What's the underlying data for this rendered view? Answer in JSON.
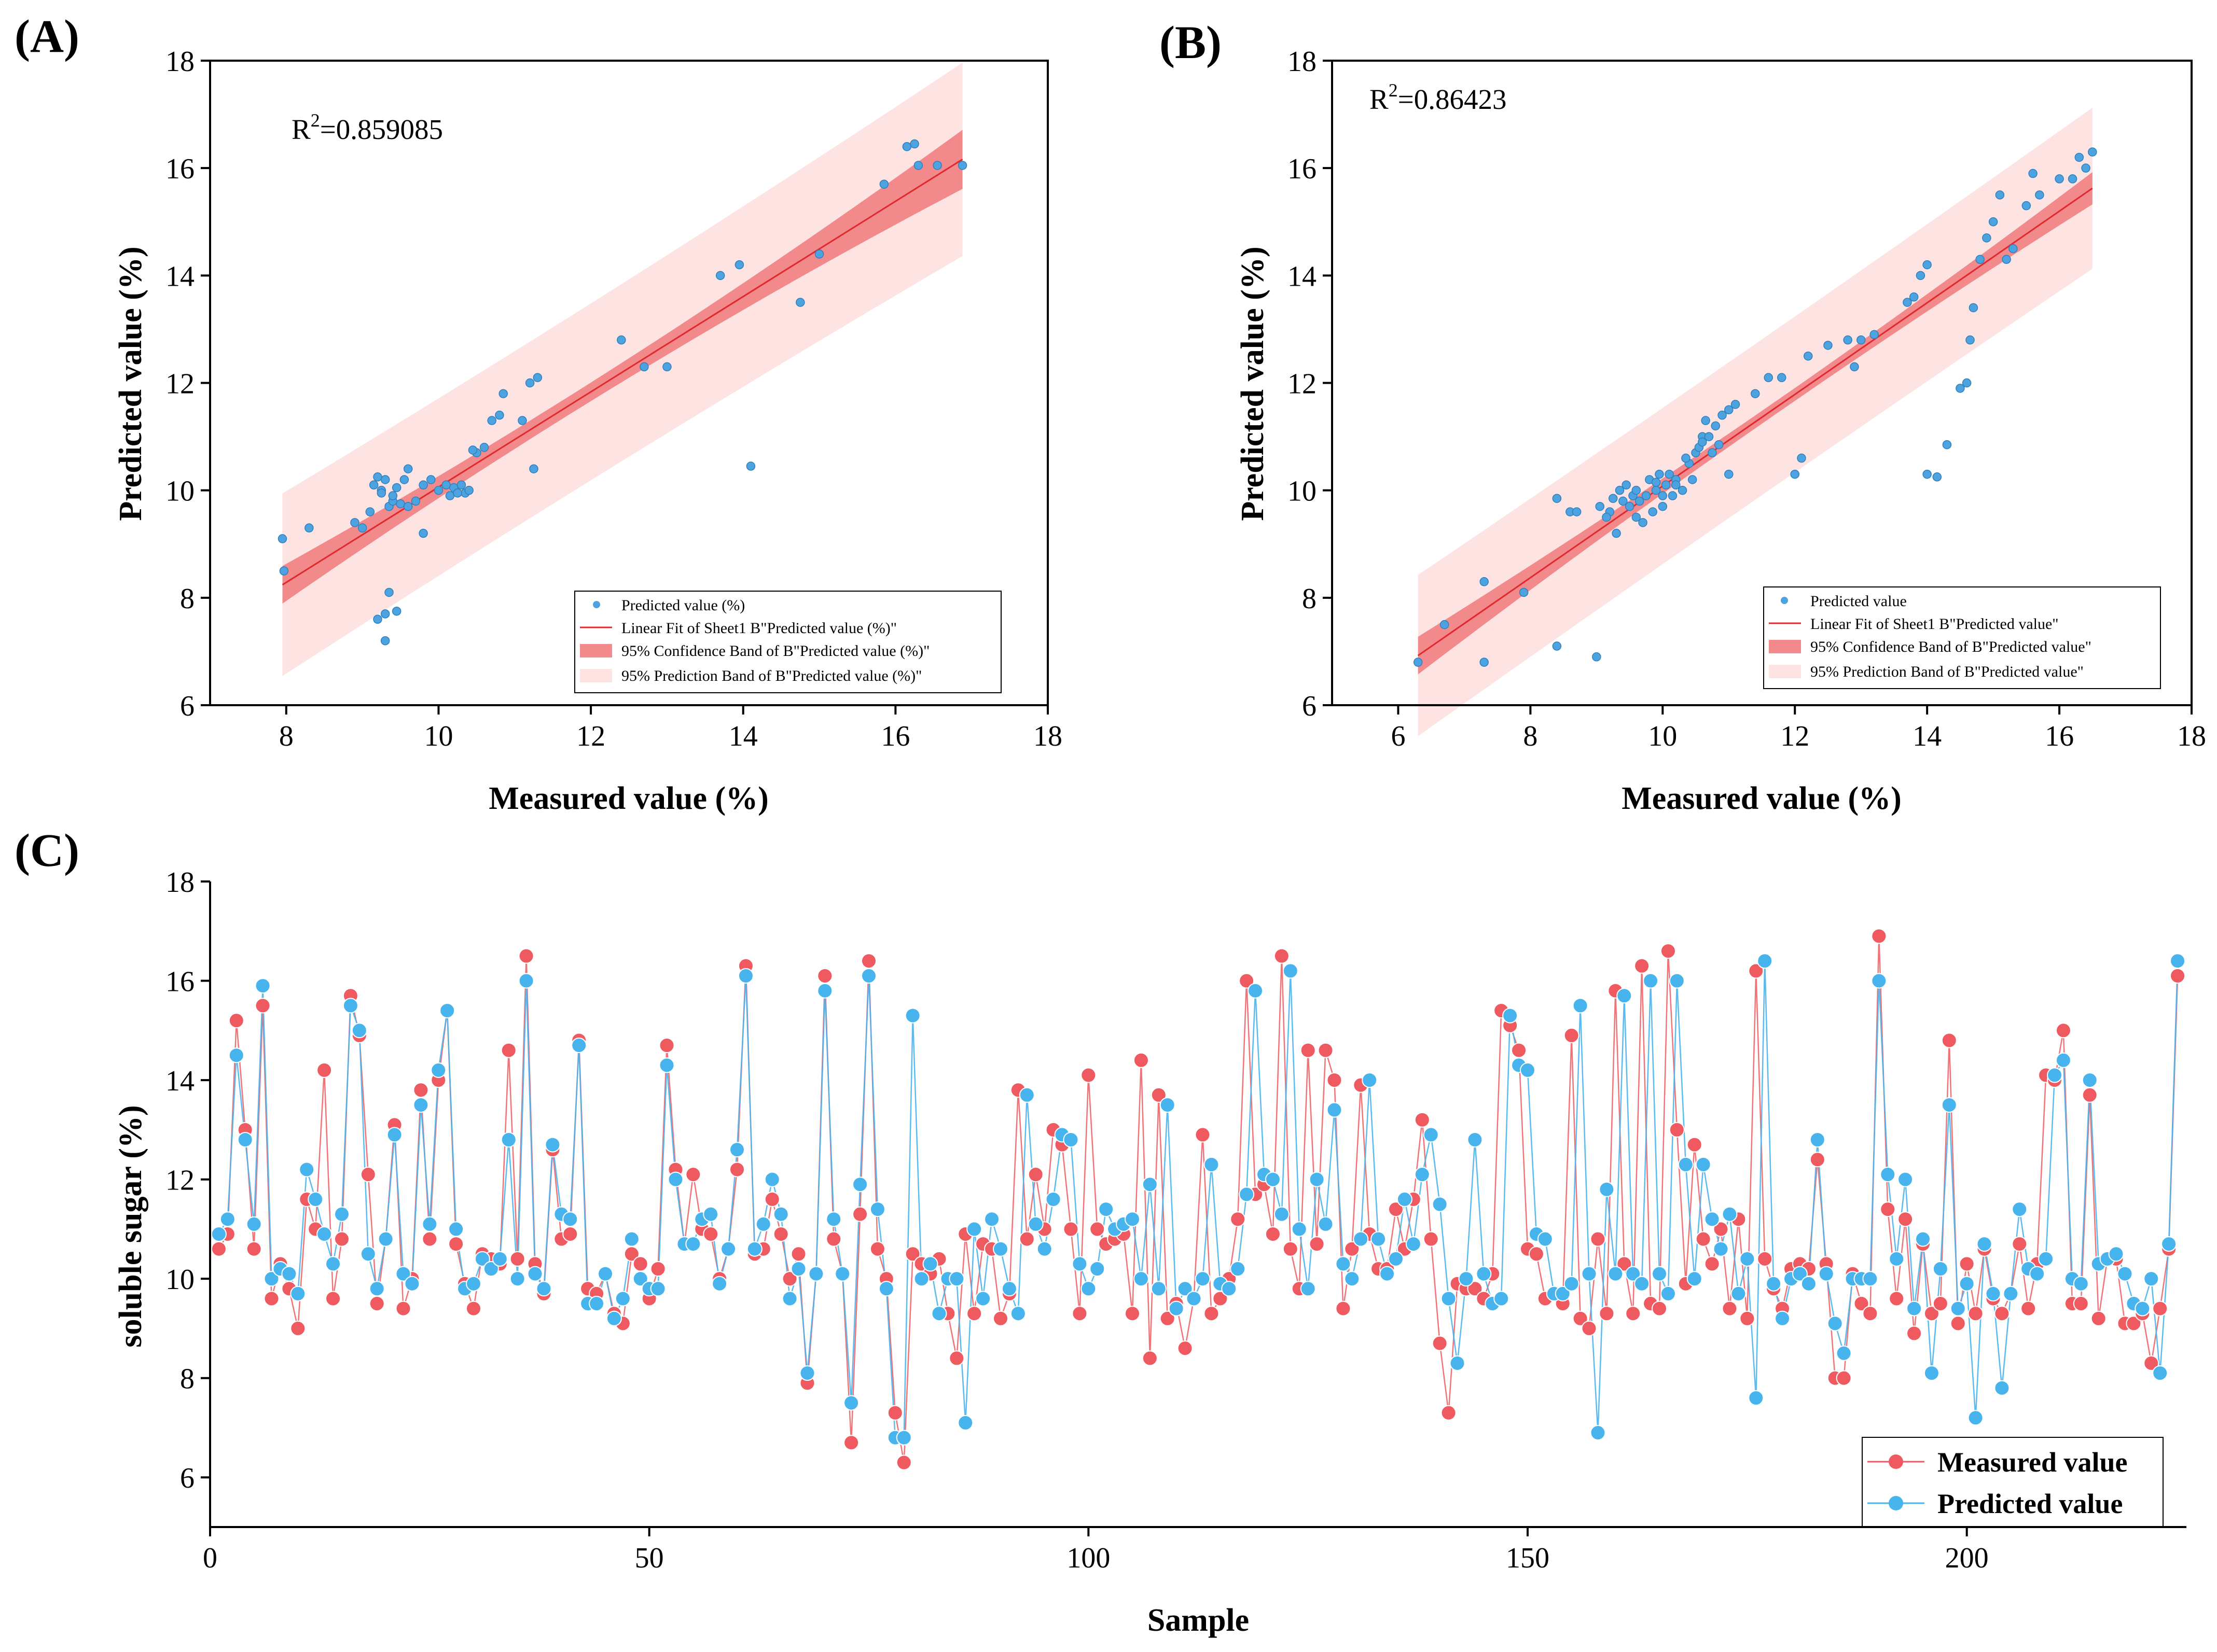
{
  "colors": {
    "point": "#4da3df",
    "point_edge": "#2f7fbd",
    "fit_line": "#e0282f",
    "confidence_band": "#f28a8c",
    "prediction_band": "#fde3e2",
    "measured": "#ee5a60",
    "predicted": "#48b4ee"
  },
  "chart_data": [
    {
      "id": "A",
      "panel_label": "(A)",
      "type": "scatter",
      "xlabel": "Measured value (%)",
      "ylabel": "Predicted value (%)",
      "xlim": [
        7,
        18
      ],
      "ylim": [
        6,
        18
      ],
      "xticks": [
        8,
        10,
        12,
        14,
        16,
        18
      ],
      "yticks": [
        6,
        8,
        10,
        12,
        14,
        16,
        18
      ],
      "r2_text": "0.859085",
      "fit": {
        "slope": 0.887,
        "intercept": 1.19,
        "x_range": [
          7.95,
          16.88
        ],
        "ci_halfwidth": [
          0.35,
          0.18,
          0.55
        ],
        "pi_halfwidth": [
          1.7,
          1.65,
          1.8
        ]
      },
      "legend": [
        "Predicted value (%)",
        "Linear Fit of Sheet1 B\"Predicted value (%)\"",
        "95% Confidence Band of B\"Predicted value (%)\"",
        "95% Prediction Band of B\"Predicted value (%)\""
      ],
      "points": [
        [
          7.95,
          9.1
        ],
        [
          7.97,
          8.5
        ],
        [
          8.3,
          9.3
        ],
        [
          8.9,
          9.4
        ],
        [
          9.0,
          9.3
        ],
        [
          9.1,
          9.6
        ],
        [
          9.15,
          10.1
        ],
        [
          9.2,
          10.25
        ],
        [
          9.25,
          10.0
        ],
        [
          9.3,
          10.2
        ],
        [
          9.35,
          9.7
        ],
        [
          9.4,
          9.8
        ],
        [
          9.45,
          10.05
        ],
        [
          9.5,
          9.75
        ],
        [
          9.55,
          10.2
        ],
        [
          9.6,
          10.4
        ],
        [
          9.7,
          9.8
        ],
        [
          9.8,
          9.2
        ],
        [
          9.9,
          10.2
        ],
        [
          10.0,
          10.0
        ],
        [
          10.1,
          10.1
        ],
        [
          10.2,
          10.05
        ],
        [
          10.3,
          10.1
        ],
        [
          10.35,
          9.95
        ],
        [
          10.4,
          10.0
        ],
        [
          10.5,
          10.7
        ],
        [
          10.6,
          10.8
        ],
        [
          10.7,
          11.3
        ],
        [
          10.8,
          11.4
        ],
        [
          10.85,
          11.8
        ],
        [
          11.1,
          11.3
        ],
        [
          11.2,
          12.0
        ],
        [
          11.3,
          12.1
        ],
        [
          11.25,
          10.4
        ],
        [
          9.2,
          7.6
        ],
        [
          9.3,
          7.2
        ],
        [
          9.35,
          8.1
        ],
        [
          9.45,
          7.75
        ],
        [
          9.3,
          7.7
        ],
        [
          12.4,
          12.8
        ],
        [
          12.7,
          12.3
        ],
        [
          13.0,
          12.3
        ],
        [
          13.7,
          14.0
        ],
        [
          13.95,
          14.2
        ],
        [
          14.1,
          10.45
        ],
        [
          14.75,
          13.5
        ],
        [
          15.0,
          14.4
        ],
        [
          15.85,
          15.7
        ],
        [
          16.15,
          16.4
        ],
        [
          16.25,
          16.45
        ],
        [
          16.3,
          16.05
        ],
        [
          16.55,
          16.05
        ],
        [
          16.88,
          16.05
        ],
        [
          9.6,
          9.7
        ],
        [
          10.15,
          9.9
        ],
        [
          9.8,
          10.1
        ],
        [
          10.45,
          10.75
        ],
        [
          9.25,
          9.95
        ],
        [
          9.4,
          9.9
        ],
        [
          10.25,
          9.95
        ]
      ]
    },
    {
      "id": "B",
      "panel_label": "(B)",
      "type": "scatter",
      "xlabel": "Measured value (%)",
      "ylabel": "Predicted value (%)",
      "xlim": [
        5,
        18
      ],
      "ylim": [
        6,
        18
      ],
      "xticks": [
        6,
        8,
        10,
        12,
        14,
        16,
        18
      ],
      "yticks": [
        6,
        8,
        10,
        12,
        14,
        16,
        18
      ],
      "r2_text": "0.86423",
      "fit": {
        "slope": 0.853,
        "intercept": 1.55,
        "x_range": [
          6.3,
          16.5
        ],
        "ci_halfwidth": [
          0.35,
          0.12,
          0.3
        ],
        "pi_halfwidth": [
          1.5,
          1.45,
          1.5
        ]
      },
      "legend": [
        "Predicted value",
        "Linear Fit of Sheet1 B\"Predicted value\"",
        "95% Confidence Band of B\"Predicted value\"",
        "95% Prediction Band of B\"Predicted value\""
      ],
      "points": [
        [
          6.3,
          6.8
        ],
        [
          6.7,
          7.5
        ],
        [
          7.3,
          8.3
        ],
        [
          7.3,
          6.8
        ],
        [
          7.9,
          8.1
        ],
        [
          8.4,
          7.1
        ],
        [
          8.4,
          9.85
        ],
        [
          8.6,
          9.6
        ],
        [
          8.7,
          9.6
        ],
        [
          9.0,
          6.9
        ],
        [
          9.05,
          9.7
        ],
        [
          9.2,
          9.6
        ],
        [
          9.25,
          9.85
        ],
        [
          9.35,
          10.0
        ],
        [
          9.4,
          9.8
        ],
        [
          9.45,
          10.1
        ],
        [
          9.5,
          9.7
        ],
        [
          9.55,
          9.9
        ],
        [
          9.6,
          10.0
        ],
        [
          9.65,
          9.8
        ],
        [
          9.7,
          9.4
        ],
        [
          9.75,
          9.9
        ],
        [
          9.8,
          10.2
        ],
        [
          9.85,
          9.6
        ],
        [
          9.9,
          10.0
        ],
        [
          9.95,
          10.3
        ],
        [
          10.0,
          9.7
        ],
        [
          10.05,
          10.1
        ],
        [
          10.1,
          10.3
        ],
        [
          10.15,
          9.9
        ],
        [
          10.2,
          10.2
        ],
        [
          10.3,
          10.0
        ],
        [
          10.4,
          10.5
        ],
        [
          10.5,
          10.7
        ],
        [
          10.55,
          10.8
        ],
        [
          10.6,
          11.0
        ],
        [
          10.65,
          11.3
        ],
        [
          10.7,
          11.0
        ],
        [
          10.75,
          10.7
        ],
        [
          10.8,
          11.2
        ],
        [
          10.85,
          10.85
        ],
        [
          10.9,
          11.4
        ],
        [
          11.0,
          11.5
        ],
        [
          11.1,
          11.6
        ],
        [
          11.0,
          10.3
        ],
        [
          11.4,
          11.8
        ],
        [
          11.6,
          12.1
        ],
        [
          11.8,
          12.1
        ],
        [
          12.0,
          10.3
        ],
        [
          12.1,
          10.6
        ],
        [
          12.2,
          12.5
        ],
        [
          12.5,
          12.7
        ],
        [
          12.8,
          12.8
        ],
        [
          12.9,
          12.3
        ],
        [
          13.0,
          12.8
        ],
        [
          13.2,
          12.9
        ],
        [
          13.7,
          13.5
        ],
        [
          13.8,
          13.6
        ],
        [
          13.9,
          14.0
        ],
        [
          14.0,
          14.2
        ],
        [
          14.0,
          10.3
        ],
        [
          14.15,
          10.25
        ],
        [
          14.3,
          10.85
        ],
        [
          14.5,
          11.9
        ],
        [
          14.6,
          12.0
        ],
        [
          14.7,
          13.4
        ],
        [
          14.65,
          12.8
        ],
        [
          14.8,
          14.3
        ],
        [
          14.9,
          14.7
        ],
        [
          15.0,
          15.0
        ],
        [
          15.1,
          15.5
        ],
        [
          15.2,
          14.3
        ],
        [
          15.3,
          14.5
        ],
        [
          15.5,
          15.3
        ],
        [
          15.6,
          15.9
        ],
        [
          15.7,
          15.5
        ],
        [
          16.0,
          15.8
        ],
        [
          16.2,
          15.8
        ],
        [
          16.4,
          16.0
        ],
        [
          16.5,
          16.3
        ],
        [
          16.3,
          16.2
        ],
        [
          9.3,
          9.2
        ],
        [
          9.6,
          9.5
        ],
        [
          10.0,
          9.9
        ],
        [
          10.2,
          10.1
        ],
        [
          10.45,
          10.2
        ],
        [
          9.15,
          9.5
        ],
        [
          9.9,
          10.15
        ],
        [
          10.6,
          10.9
        ],
        [
          10.35,
          10.6
        ]
      ]
    },
    {
      "id": "C",
      "panel_label": "(C)",
      "type": "line",
      "xlabel": "Sample",
      "ylabel": "soluble sugar (%)",
      "xlim": [
        0,
        225
      ],
      "ylim": [
        5,
        18
      ],
      "xticks": [
        0,
        50,
        100,
        150,
        200
      ],
      "yticks": [
        6,
        8,
        10,
        12,
        14,
        16,
        18
      ],
      "series": [
        {
          "name": "Measured value",
          "values": [
            10.6,
            10.9,
            15.2,
            13.0,
            10.6,
            15.5,
            9.6,
            10.3,
            9.8,
            9.0,
            11.6,
            11.0,
            14.2,
            9.6,
            10.8,
            15.7,
            14.9,
            12.1,
            9.5,
            10.8,
            13.1,
            9.4,
            10.0,
            13.8,
            10.8,
            14.0,
            15.4,
            10.7,
            9.9,
            9.4,
            10.5,
            10.4,
            10.3,
            14.6,
            10.4,
            16.5,
            10.3,
            9.7,
            12.6,
            10.8,
            10.9,
            14.8,
            9.8,
            9.7,
            10.1,
            9.3,
            9.1,
            10.5,
            10.3,
            9.6,
            10.2,
            14.7,
            12.2,
            10.7,
            12.1,
            11.0,
            10.9,
            10.0,
            10.6,
            12.2,
            16.3,
            10.5,
            10.6,
            11.6,
            10.9,
            10.0,
            10.5,
            7.9,
            10.1,
            16.1,
            10.8,
            10.1,
            6.7,
            11.3,
            16.4,
            10.6,
            10.0,
            7.3,
            6.3,
            10.5,
            10.3,
            10.1,
            10.4,
            9.3,
            8.4,
            10.9,
            9.3,
            10.7,
            10.6,
            9.2,
            9.7,
            13.8,
            10.8,
            12.1,
            11.0,
            13.0,
            12.7,
            11.0,
            9.3,
            14.1,
            11.0,
            10.7,
            10.8,
            10.9,
            9.3,
            14.4,
            8.4,
            13.7,
            9.2,
            9.5,
            8.6,
            9.6,
            12.9,
            9.3,
            9.6,
            10.0,
            11.2,
            16.0,
            11.7,
            11.9,
            10.9,
            16.5,
            10.6,
            9.8,
            14.6,
            10.7,
            14.6,
            14.0,
            9.4,
            10.6,
            13.9,
            10.9,
            10.2,
            10.2,
            11.4,
            10.6,
            11.6,
            13.2,
            10.8,
            8.7,
            7.3,
            9.9,
            9.8,
            9.8,
            9.6,
            10.1,
            15.4,
            15.1,
            14.6,
            10.6,
            10.5,
            9.6,
            9.7,
            9.5,
            14.9,
            9.2,
            9.0,
            10.8,
            9.3,
            15.8,
            10.3,
            9.3,
            16.3,
            9.5,
            9.4,
            16.6,
            13.0,
            9.9,
            12.7,
            10.8,
            10.3,
            11.0,
            9.4,
            11.2,
            9.2,
            16.2,
            10.4,
            9.8,
            9.4,
            10.2,
            10.3,
            10.2,
            12.4,
            10.3,
            8.0,
            8.0,
            10.1,
            9.5,
            9.3,
            16.9,
            11.4,
            9.6,
            11.2,
            8.9,
            10.7,
            9.3,
            9.5,
            14.8,
            9.1,
            10.3,
            9.3,
            10.6,
            9.6,
            9.3,
            9.7,
            10.7,
            9.4,
            10.3,
            14.1,
            14.0,
            15.0,
            9.5,
            9.5,
            13.7,
            9.2,
            10.4,
            10.4,
            9.1,
            9.1,
            9.3,
            8.3,
            9.4,
            10.6,
            16.1
          ]
        },
        {
          "name": "Predicted value",
          "values": [
            10.9,
            11.2,
            14.5,
            12.8,
            11.1,
            15.9,
            10.0,
            10.2,
            10.1,
            9.7,
            12.2,
            11.6,
            10.9,
            10.3,
            11.3,
            15.5,
            15.0,
            10.5,
            9.8,
            10.8,
            12.9,
            10.1,
            9.9,
            13.5,
            11.1,
            14.2,
            15.4,
            11.0,
            9.8,
            9.9,
            10.4,
            10.2,
            10.4,
            12.8,
            10.0,
            16.0,
            10.1,
            9.8,
            12.7,
            11.3,
            11.2,
            14.7,
            9.5,
            9.5,
            10.1,
            9.2,
            9.6,
            10.8,
            10.0,
            9.8,
            9.8,
            14.3,
            12.0,
            10.7,
            10.7,
            11.2,
            11.3,
            9.9,
            10.6,
            12.6,
            16.1,
            10.6,
            11.1,
            12.0,
            11.3,
            9.6,
            10.2,
            8.1,
            10.1,
            15.8,
            11.2,
            10.1,
            7.5,
            11.9,
            16.1,
            11.4,
            9.8,
            6.8,
            6.8,
            15.3,
            10.0,
            10.3,
            9.3,
            10.0,
            10.0,
            7.1,
            11.0,
            9.6,
            11.2,
            10.6,
            9.8,
            9.3,
            13.7,
            11.1,
            10.6,
            11.6,
            12.9,
            12.8,
            10.3,
            9.8,
            10.2,
            11.4,
            11.0,
            11.1,
            11.2,
            10.0,
            11.9,
            9.8,
            13.5,
            9.4,
            9.8,
            9.6,
            10.0,
            12.3,
            9.9,
            9.8,
            10.2,
            11.7,
            15.8,
            12.1,
            12.0,
            11.3,
            16.2,
            11.0,
            9.8,
            12.0,
            11.1,
            13.4,
            10.3,
            10.0,
            10.8,
            14.0,
            10.8,
            10.1,
            10.4,
            11.6,
            10.7,
            12.1,
            12.9,
            11.5,
            9.6,
            8.3,
            10.0,
            12.8,
            10.1,
            9.5,
            9.6,
            15.3,
            14.3,
            14.2,
            10.9,
            10.8,
            9.7,
            9.7,
            9.9,
            15.5,
            10.1,
            6.9,
            11.8,
            10.1,
            15.7,
            10.1,
            9.9,
            16.0,
            10.1,
            9.7,
            16.0,
            12.3,
            10.0,
            12.3,
            11.2,
            10.6,
            11.3,
            9.7,
            10.4,
            7.6,
            16.4,
            9.9,
            9.2,
            10.0,
            10.1,
            9.9,
            12.8,
            10.1,
            9.1,
            8.5,
            10.0,
            10.0,
            10.0,
            16.0,
            12.1,
            10.4,
            12.0,
            9.4,
            10.8,
            8.1,
            10.2,
            13.5,
            9.4,
            9.9,
            7.2,
            10.7,
            9.7,
            7.8,
            9.7,
            11.4,
            10.2,
            10.1,
            10.4,
            14.1,
            14.4,
            10.0,
            9.9,
            14.0,
            10.3,
            10.4,
            10.5,
            10.1,
            9.5,
            9.4,
            10.0,
            8.1,
            10.7,
            16.4
          ]
        }
      ]
    }
  ]
}
